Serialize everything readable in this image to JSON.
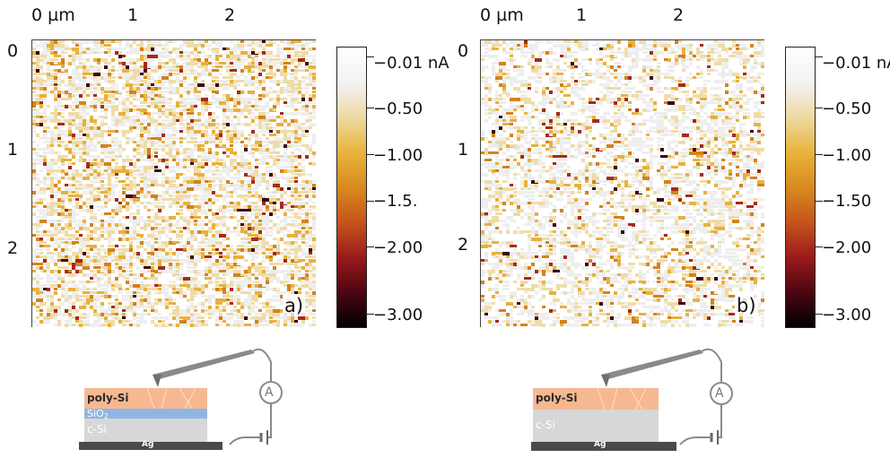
{
  "colors": {
    "cmap": [
      "#ffffff",
      "#f2f2f2",
      "#eed9a0",
      "#e8b23a",
      "#d98a1f",
      "#c4521c",
      "#9a1b1b",
      "#4a0610",
      "#000000"
    ],
    "polySi": "#f6b891",
    "sio2": "#8fb6e3",
    "cSi": "#d7d7d7",
    "ag": "#4a4a4a",
    "wire": "#8a8a8a"
  },
  "panels": [
    {
      "id": "a",
      "tag": "a)",
      "x_ticks": [
        "0 µm",
        "1",
        "2"
      ],
      "y_ticks": [
        "0",
        "1",
        "2"
      ],
      "colorbar": [
        "−0.01 nA",
        "−0.50",
        "−1.00",
        "−1.5.",
        "−2.00",
        "−3.00"
      ],
      "density": 0.38,
      "seed": 7,
      "schematic": {
        "layers": [
          {
            "name": "poly-Si",
            "label": "poly-Si",
            "sub": ""
          },
          {
            "name": "sio2",
            "label": "SiO",
            "sub": "2"
          },
          {
            "name": "c-si",
            "label": "c-Si",
            "sub": ""
          },
          {
            "name": "ag",
            "label": "Ag",
            "sub": ""
          }
        ],
        "ammeter": "A"
      }
    },
    {
      "id": "b",
      "tag": "b)",
      "x_ticks": [
        "0 µm",
        "1",
        "2"
      ],
      "y_ticks": [
        "0",
        "1",
        "2"
      ],
      "colorbar": [
        "−0.01 nA",
        "−0.50",
        "−1.00",
        "−1.50",
        "−2.00",
        "−3.00"
      ],
      "density": 0.22,
      "seed": 19,
      "schematic": {
        "layers": [
          {
            "name": "poly-Si",
            "label": "poly-Si",
            "sub": ""
          },
          {
            "name": "c-si",
            "label": "c-Si",
            "sub": ""
          },
          {
            "name": "ag",
            "label": "Ag",
            "sub": ""
          }
        ],
        "ammeter": "A"
      }
    }
  ]
}
